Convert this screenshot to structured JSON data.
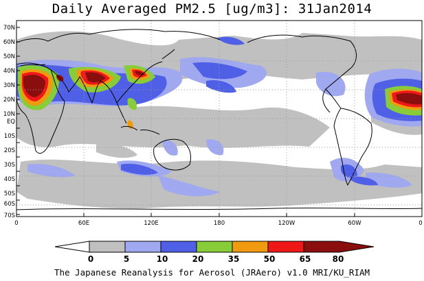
{
  "title": "Daily Averaged PM2.5 [ug/m3]: 31Jan2014",
  "credit": "The Japanese Reanalysis for Aerosol (JRAero) v1.0 MRI/KU_RIAM",
  "map": {
    "lat_labels": [
      "70N",
      "60N",
      "50N",
      "40N",
      "30N",
      "20N",
      "10N",
      "EQ",
      "10S",
      "20S",
      "30S",
      "40S",
      "50S",
      "60S",
      "70S"
    ],
    "lon_labels": [
      "0",
      "60E",
      "120E",
      "180",
      "120W",
      "60W",
      "0"
    ]
  },
  "legend": {
    "bins": [
      {
        "color": "#ffffff"
      },
      {
        "color": "#c0c0c0"
      },
      {
        "color": "#a0a8f0"
      },
      {
        "color": "#5060e6"
      },
      {
        "color": "#88cc3a"
      },
      {
        "color": "#f09a10"
      },
      {
        "color": "#ee1818"
      },
      {
        "color": "#8a0e0e"
      }
    ],
    "labels": [
      "0",
      "5",
      "10",
      "20",
      "35",
      "50",
      "65",
      "80"
    ]
  }
}
